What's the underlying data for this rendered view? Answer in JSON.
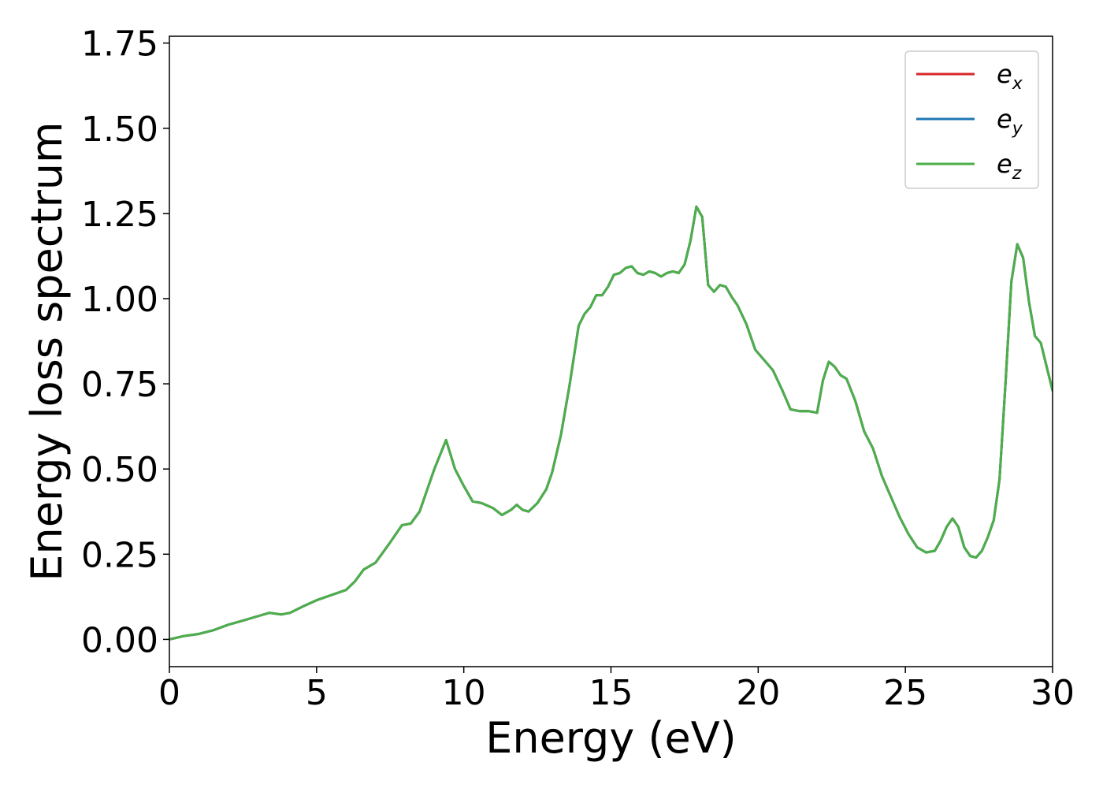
{
  "chart_data": {
    "type": "line",
    "title": "",
    "xlabel": "Energy (eV)",
    "ylabel": "Energy loss spectrum",
    "xlim": [
      0,
      30
    ],
    "ylim": [
      -0.08,
      1.77
    ],
    "xticks": [
      0,
      5,
      10,
      15,
      20,
      25,
      30
    ],
    "xtick_labels": [
      "0",
      "5",
      "10",
      "15",
      "20",
      "25",
      "30"
    ],
    "yticks": [
      0,
      0.25,
      0.5,
      0.75,
      1.0,
      1.25,
      1.5,
      1.75
    ],
    "ytick_labels": [
      "0.00",
      "0.25",
      "0.50",
      "0.75",
      "1.00",
      "1.25",
      "1.50",
      "1.75"
    ],
    "grid": false,
    "legend_position": "top-right",
    "x": [
      0,
      0.5,
      1,
      1.5,
      2,
      2.5,
      3,
      3.4,
      3.8,
      4.1,
      4.5,
      5,
      5.5,
      6,
      6.3,
      6.6,
      7,
      7.5,
      7.9,
      8.2,
      8.5,
      9,
      9.4,
      9.7,
      10,
      10.3,
      10.6,
      11,
      11.3,
      11.6,
      11.8,
      12,
      12.2,
      12.5,
      12.8,
      13,
      13.3,
      13.6,
      13.9,
      14.1,
      14.3,
      14.5,
      14.7,
      14.9,
      15.1,
      15.3,
      15.5,
      15.7,
      15.9,
      16.1,
      16.3,
      16.5,
      16.7,
      16.9,
      17.1,
      17.3,
      17.5,
      17.7,
      17.9,
      18.1,
      18.3,
      18.5,
      18.7,
      18.9,
      19.1,
      19.3,
      19.6,
      19.9,
      20.2,
      20.5,
      20.8,
      21.1,
      21.4,
      21.7,
      22,
      22.2,
      22.4,
      22.6,
      22.8,
      23,
      23.3,
      23.6,
      23.9,
      24.2,
      24.5,
      24.8,
      25.1,
      25.4,
      25.7,
      26,
      26.2,
      26.4,
      26.6,
      26.8,
      27,
      27.2,
      27.4,
      27.6,
      27.8,
      28,
      28.2,
      28.4,
      28.6,
      28.8,
      29,
      29.2,
      29.4,
      29.6,
      29.8,
      30
    ],
    "series": [
      {
        "name": "e_x",
        "color": "#d62728",
        "values": [
          0,
          0.01,
          0.016,
          0.027,
          0.043,
          0.055,
          0.068,
          0.078,
          0.073,
          0.078,
          0.095,
          0.115,
          0.13,
          0.145,
          0.17,
          0.205,
          0.225,
          0.285,
          0.335,
          0.34,
          0.375,
          0.5,
          0.585,
          0.5,
          0.45,
          0.405,
          0.4,
          0.385,
          0.365,
          0.38,
          0.395,
          0.38,
          0.375,
          0.4,
          0.44,
          0.49,
          0.6,
          0.75,
          0.92,
          0.955,
          0.975,
          1.01,
          1.01,
          1.035,
          1.07,
          1.075,
          1.09,
          1.095,
          1.075,
          1.07,
          1.08,
          1.075,
          1.065,
          1.075,
          1.08,
          1.075,
          1.1,
          1.17,
          1.27,
          1.24,
          1.04,
          1.02,
          1.04,
          1.035,
          1.005,
          0.98,
          0.925,
          0.85,
          0.82,
          0.79,
          0.735,
          0.675,
          0.67,
          0.67,
          0.665,
          0.76,
          0.815,
          0.8,
          0.775,
          0.765,
          0.7,
          0.61,
          0.56,
          0.48,
          0.42,
          0.36,
          0.31,
          0.27,
          0.255,
          0.26,
          0.29,
          0.33,
          0.355,
          0.33,
          0.27,
          0.245,
          0.24,
          0.26,
          0.3,
          0.35,
          0.47,
          0.75,
          1.05,
          1.16,
          1.12,
          0.99,
          0.89,
          0.87,
          0.8,
          0.73
        ]
      },
      {
        "name": "e_y",
        "color": "#1f77b4",
        "values": [
          0,
          0.01,
          0.016,
          0.027,
          0.043,
          0.055,
          0.068,
          0.078,
          0.073,
          0.078,
          0.095,
          0.115,
          0.13,
          0.145,
          0.17,
          0.205,
          0.225,
          0.285,
          0.335,
          0.34,
          0.375,
          0.5,
          0.585,
          0.5,
          0.45,
          0.405,
          0.4,
          0.385,
          0.365,
          0.38,
          0.395,
          0.38,
          0.375,
          0.4,
          0.44,
          0.49,
          0.6,
          0.75,
          0.92,
          0.955,
          0.975,
          1.01,
          1.01,
          1.035,
          1.07,
          1.075,
          1.09,
          1.095,
          1.075,
          1.07,
          1.08,
          1.075,
          1.065,
          1.075,
          1.08,
          1.075,
          1.1,
          1.17,
          1.27,
          1.24,
          1.04,
          1.02,
          1.04,
          1.035,
          1.005,
          0.98,
          0.925,
          0.85,
          0.82,
          0.79,
          0.735,
          0.675,
          0.67,
          0.67,
          0.665,
          0.76,
          0.815,
          0.8,
          0.775,
          0.765,
          0.7,
          0.61,
          0.56,
          0.48,
          0.42,
          0.36,
          0.31,
          0.27,
          0.255,
          0.26,
          0.29,
          0.33,
          0.355,
          0.33,
          0.27,
          0.245,
          0.24,
          0.26,
          0.3,
          0.35,
          0.47,
          0.75,
          1.05,
          1.16,
          1.12,
          0.99,
          0.89,
          0.87,
          0.8,
          0.73
        ]
      },
      {
        "name": "e_z",
        "color": "#4daf4a",
        "values": [
          0,
          0.01,
          0.016,
          0.027,
          0.043,
          0.055,
          0.068,
          0.078,
          0.073,
          0.078,
          0.095,
          0.115,
          0.13,
          0.145,
          0.17,
          0.205,
          0.225,
          0.285,
          0.335,
          0.34,
          0.375,
          0.5,
          0.585,
          0.5,
          0.45,
          0.405,
          0.4,
          0.385,
          0.365,
          0.38,
          0.395,
          0.38,
          0.375,
          0.4,
          0.44,
          0.49,
          0.6,
          0.75,
          0.92,
          0.955,
          0.975,
          1.01,
          1.01,
          1.035,
          1.07,
          1.075,
          1.09,
          1.095,
          1.075,
          1.07,
          1.08,
          1.075,
          1.065,
          1.075,
          1.08,
          1.075,
          1.1,
          1.17,
          1.27,
          1.24,
          1.04,
          1.02,
          1.04,
          1.035,
          1.005,
          0.98,
          0.925,
          0.85,
          0.82,
          0.79,
          0.735,
          0.675,
          0.67,
          0.67,
          0.665,
          0.76,
          0.815,
          0.8,
          0.775,
          0.765,
          0.7,
          0.61,
          0.56,
          0.48,
          0.42,
          0.36,
          0.31,
          0.27,
          0.255,
          0.26,
          0.29,
          0.33,
          0.355,
          0.33,
          0.27,
          0.245,
          0.24,
          0.26,
          0.3,
          0.35,
          0.47,
          0.75,
          1.05,
          1.16,
          1.12,
          0.99,
          0.89,
          0.87,
          0.8,
          0.73
        ]
      }
    ],
    "legend": [
      {
        "base": "e",
        "sub": "x",
        "color": "#d62728"
      },
      {
        "base": "e",
        "sub": "y",
        "color": "#1f77b4"
      },
      {
        "base": "e",
        "sub": "z",
        "color": "#4daf4a"
      }
    ]
  }
}
